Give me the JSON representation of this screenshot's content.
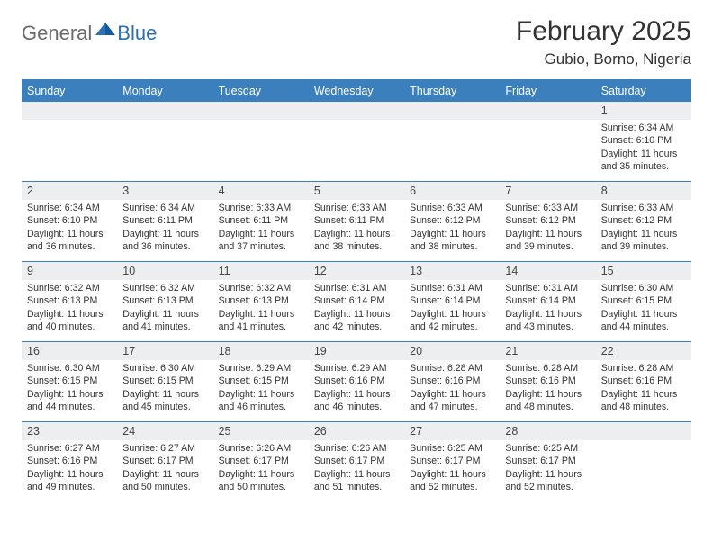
{
  "logo": {
    "part1": "General",
    "part2": "Blue"
  },
  "title": "February 2025",
  "location": "Gubio, Borno, Nigeria",
  "header_bg": "#3b7fbd",
  "rule_color": "#3b7fbd",
  "daynum_bg": "#eceef0",
  "weekdays": [
    "Sunday",
    "Monday",
    "Tuesday",
    "Wednesday",
    "Thursday",
    "Friday",
    "Saturday"
  ],
  "weeks": [
    [
      {
        "n": "",
        "sunrise": "",
        "sunset": "",
        "daylight": ""
      },
      {
        "n": "",
        "sunrise": "",
        "sunset": "",
        "daylight": ""
      },
      {
        "n": "",
        "sunrise": "",
        "sunset": "",
        "daylight": ""
      },
      {
        "n": "",
        "sunrise": "",
        "sunset": "",
        "daylight": ""
      },
      {
        "n": "",
        "sunrise": "",
        "sunset": "",
        "daylight": ""
      },
      {
        "n": "",
        "sunrise": "",
        "sunset": "",
        "daylight": ""
      },
      {
        "n": "1",
        "sunrise": "6:34 AM",
        "sunset": "6:10 PM",
        "daylight": "11 hours and 35 minutes."
      }
    ],
    [
      {
        "n": "2",
        "sunrise": "6:34 AM",
        "sunset": "6:10 PM",
        "daylight": "11 hours and 36 minutes."
      },
      {
        "n": "3",
        "sunrise": "6:34 AM",
        "sunset": "6:11 PM",
        "daylight": "11 hours and 36 minutes."
      },
      {
        "n": "4",
        "sunrise": "6:33 AM",
        "sunset": "6:11 PM",
        "daylight": "11 hours and 37 minutes."
      },
      {
        "n": "5",
        "sunrise": "6:33 AM",
        "sunset": "6:11 PM",
        "daylight": "11 hours and 38 minutes."
      },
      {
        "n": "6",
        "sunrise": "6:33 AM",
        "sunset": "6:12 PM",
        "daylight": "11 hours and 38 minutes."
      },
      {
        "n": "7",
        "sunrise": "6:33 AM",
        "sunset": "6:12 PM",
        "daylight": "11 hours and 39 minutes."
      },
      {
        "n": "8",
        "sunrise": "6:33 AM",
        "sunset": "6:12 PM",
        "daylight": "11 hours and 39 minutes."
      }
    ],
    [
      {
        "n": "9",
        "sunrise": "6:32 AM",
        "sunset": "6:13 PM",
        "daylight": "11 hours and 40 minutes."
      },
      {
        "n": "10",
        "sunrise": "6:32 AM",
        "sunset": "6:13 PM",
        "daylight": "11 hours and 41 minutes."
      },
      {
        "n": "11",
        "sunrise": "6:32 AM",
        "sunset": "6:13 PM",
        "daylight": "11 hours and 41 minutes."
      },
      {
        "n": "12",
        "sunrise": "6:31 AM",
        "sunset": "6:14 PM",
        "daylight": "11 hours and 42 minutes."
      },
      {
        "n": "13",
        "sunrise": "6:31 AM",
        "sunset": "6:14 PM",
        "daylight": "11 hours and 42 minutes."
      },
      {
        "n": "14",
        "sunrise": "6:31 AM",
        "sunset": "6:14 PM",
        "daylight": "11 hours and 43 minutes."
      },
      {
        "n": "15",
        "sunrise": "6:30 AM",
        "sunset": "6:15 PM",
        "daylight": "11 hours and 44 minutes."
      }
    ],
    [
      {
        "n": "16",
        "sunrise": "6:30 AM",
        "sunset": "6:15 PM",
        "daylight": "11 hours and 44 minutes."
      },
      {
        "n": "17",
        "sunrise": "6:30 AM",
        "sunset": "6:15 PM",
        "daylight": "11 hours and 45 minutes."
      },
      {
        "n": "18",
        "sunrise": "6:29 AM",
        "sunset": "6:15 PM",
        "daylight": "11 hours and 46 minutes."
      },
      {
        "n": "19",
        "sunrise": "6:29 AM",
        "sunset": "6:16 PM",
        "daylight": "11 hours and 46 minutes."
      },
      {
        "n": "20",
        "sunrise": "6:28 AM",
        "sunset": "6:16 PM",
        "daylight": "11 hours and 47 minutes."
      },
      {
        "n": "21",
        "sunrise": "6:28 AM",
        "sunset": "6:16 PM",
        "daylight": "11 hours and 48 minutes."
      },
      {
        "n": "22",
        "sunrise": "6:28 AM",
        "sunset": "6:16 PM",
        "daylight": "11 hours and 48 minutes."
      }
    ],
    [
      {
        "n": "23",
        "sunrise": "6:27 AM",
        "sunset": "6:16 PM",
        "daylight": "11 hours and 49 minutes."
      },
      {
        "n": "24",
        "sunrise": "6:27 AM",
        "sunset": "6:17 PM",
        "daylight": "11 hours and 50 minutes."
      },
      {
        "n": "25",
        "sunrise": "6:26 AM",
        "sunset": "6:17 PM",
        "daylight": "11 hours and 50 minutes."
      },
      {
        "n": "26",
        "sunrise": "6:26 AM",
        "sunset": "6:17 PM",
        "daylight": "11 hours and 51 minutes."
      },
      {
        "n": "27",
        "sunrise": "6:25 AM",
        "sunset": "6:17 PM",
        "daylight": "11 hours and 52 minutes."
      },
      {
        "n": "28",
        "sunrise": "6:25 AM",
        "sunset": "6:17 PM",
        "daylight": "11 hours and 52 minutes."
      },
      {
        "n": "",
        "sunrise": "",
        "sunset": "",
        "daylight": ""
      }
    ]
  ],
  "labels": {
    "sunrise": "Sunrise:",
    "sunset": "Sunset:",
    "daylight": "Daylight:"
  }
}
